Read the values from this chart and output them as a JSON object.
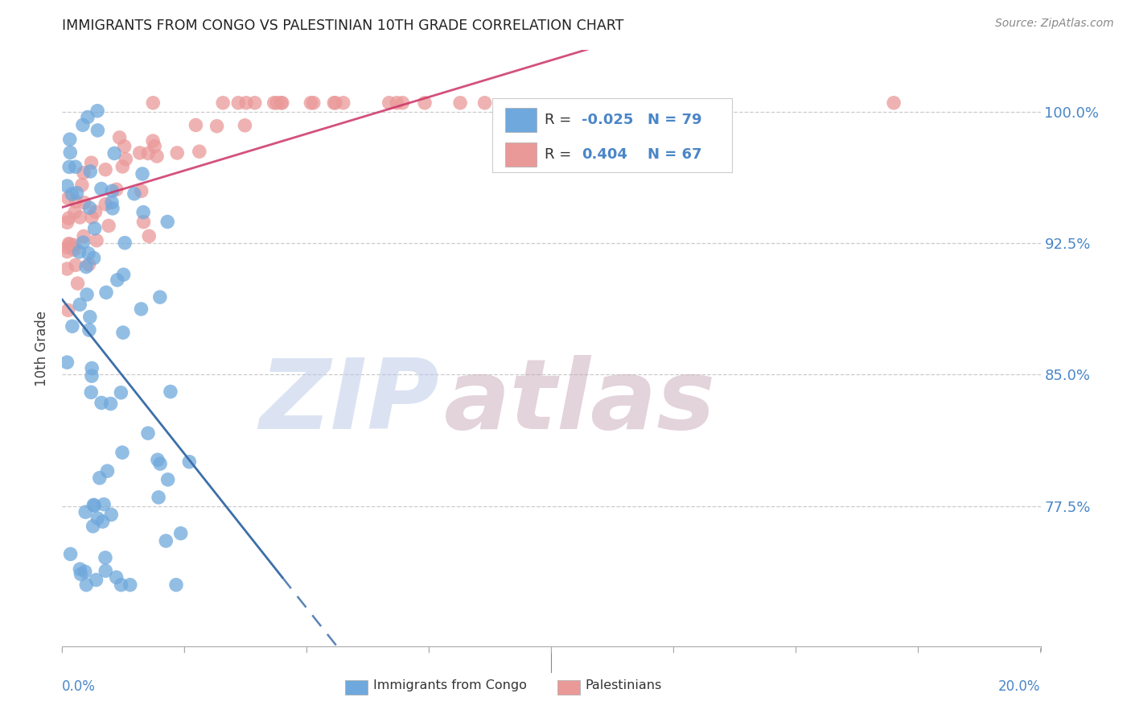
{
  "title": "IMMIGRANTS FROM CONGO VS PALESTINIAN 10TH GRADE CORRELATION CHART",
  "source": "Source: ZipAtlas.com",
  "ylabel": "10th Grade",
  "xlim": [
    0.0,
    0.2
  ],
  "ylim": [
    0.695,
    1.035
  ],
  "legend_r_congo": "-0.025",
  "legend_n_congo": "79",
  "legend_r_pal": "0.404",
  "legend_n_pal": "67",
  "congo_color": "#6fa8dc",
  "pal_color": "#ea9999",
  "congo_line_color": "#3d6fa8",
  "pal_line_color": "#cc3366",
  "watermark_zip": "ZIP",
  "watermark_atlas": "atlas",
  "background_color": "#ffffff",
  "title_color": "#222222",
  "axis_label_color": "#4a86c8",
  "y_tick_vals": [
    0.775,
    0.85,
    0.925,
    1.0
  ],
  "y_tick_labels": [
    "77.5%",
    "85.0%",
    "92.5%",
    "100.0%"
  ]
}
